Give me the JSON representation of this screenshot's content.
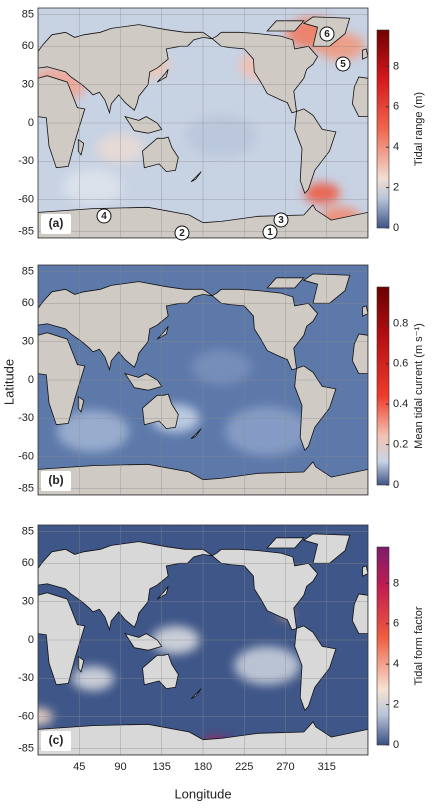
{
  "figure": {
    "y_axis_label": "Latitude",
    "x_axis_label": "Longitude",
    "xlim": [
      0,
      360
    ],
    "xticks": [
      45,
      90,
      135,
      180,
      225,
      270,
      315
    ],
    "ylim": [
      -90,
      90
    ],
    "yticks": [
      85,
      60,
      30,
      0,
      -30,
      -60,
      -85
    ]
  },
  "panels": [
    {
      "label": "(a)",
      "colorbar_label": "Tidal range (m)",
      "colorbar_range": [
        0,
        9.8
      ],
      "colorbar_ticks": [
        0,
        2,
        4,
        6,
        8
      ],
      "markers": [
        "1",
        "2",
        "3",
        "4",
        "5",
        "6"
      ]
    },
    {
      "label": "(b)",
      "colorbar_label": "Mean tidal current (m s⁻¹)",
      "colorbar_range": [
        0,
        0.98
      ],
      "colorbar_ticks": [
        0,
        0.2,
        0.4,
        0.6,
        0.8
      ]
    },
    {
      "label": "(c)",
      "colorbar_label": "Tidal form factor",
      "colorbar_range": [
        0,
        9.8
      ],
      "colorbar_ticks": [
        0,
        2,
        4,
        6,
        8
      ]
    }
  ]
}
